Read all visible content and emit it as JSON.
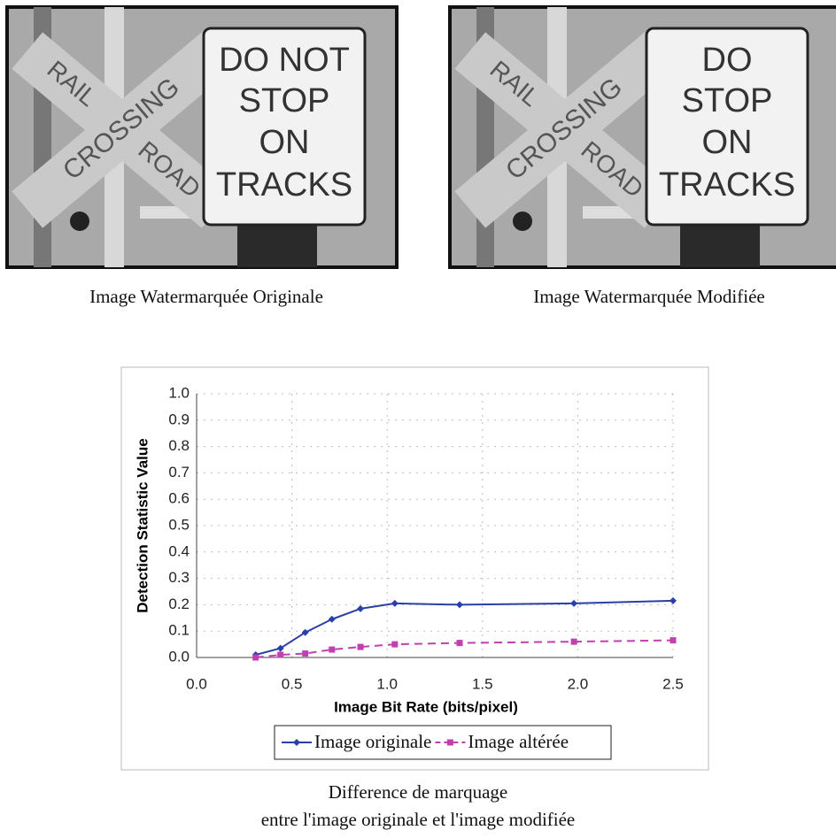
{
  "images": [
    {
      "caption": "Image Watermarquée Originale",
      "crossbuck": [
        "RAIL",
        "ROAD",
        "CROSSING"
      ],
      "sign": [
        "DO NOT",
        "STOP",
        "ON",
        "TRACKS"
      ]
    },
    {
      "caption": "Image Watermarquée Modifiée",
      "crossbuck": [
        "RAIL",
        "ROAD",
        "CROSSING"
      ],
      "sign": [
        "DO",
        "STOP",
        "ON",
        "TRACKS"
      ]
    }
  ],
  "chart_data": {
    "type": "line",
    "x_label": "Image Bit Rate (bits/pixel)",
    "y_label": "Detection Statistic Value",
    "caption": [
      "Difference de marquage",
      "entre l'image originale et l'image modifiée"
    ],
    "xlim": [
      0,
      2.5
    ],
    "xticks": [
      {
        "value": 0,
        "label": "0.0"
      },
      0.5,
      {
        "value": 1,
        "label": "1.0"
      },
      1.5,
      {
        "value": 2,
        "label": "2.0"
      },
      2.5
    ],
    "ylim": [
      0,
      1
    ],
    "yticks": [
      {
        "value": 0,
        "label": "0.0"
      },
      0.1,
      0.2,
      0.3,
      0.4,
      0.5,
      0.6,
      0.7,
      0.8,
      0.9,
      {
        "value": 1,
        "label": "1.0"
      }
    ],
    "grid": true,
    "legend": "bottom",
    "series": [
      {
        "name": "Image originale",
        "color": "#2b3fa8",
        "dashed": false,
        "x": [
          0.31,
          0.44,
          0.57,
          0.71,
          0.86,
          1.04,
          1.38,
          1.98,
          2.5
        ],
        "values": [
          0.01,
          0.035,
          0.095,
          0.145,
          0.185,
          0.205,
          0.2,
          0.205,
          0.215
        ]
      },
      {
        "name": "Image altérée",
        "color": "#c040b0",
        "dashed": true,
        "x": [
          0.31,
          0.44,
          0.57,
          0.71,
          0.86,
          1.04,
          1.38,
          1.98,
          2.5
        ],
        "values": [
          0,
          0.01,
          0.015,
          0.03,
          0.04,
          0.05,
          0.055,
          0.06,
          0.065
        ]
      }
    ]
  }
}
